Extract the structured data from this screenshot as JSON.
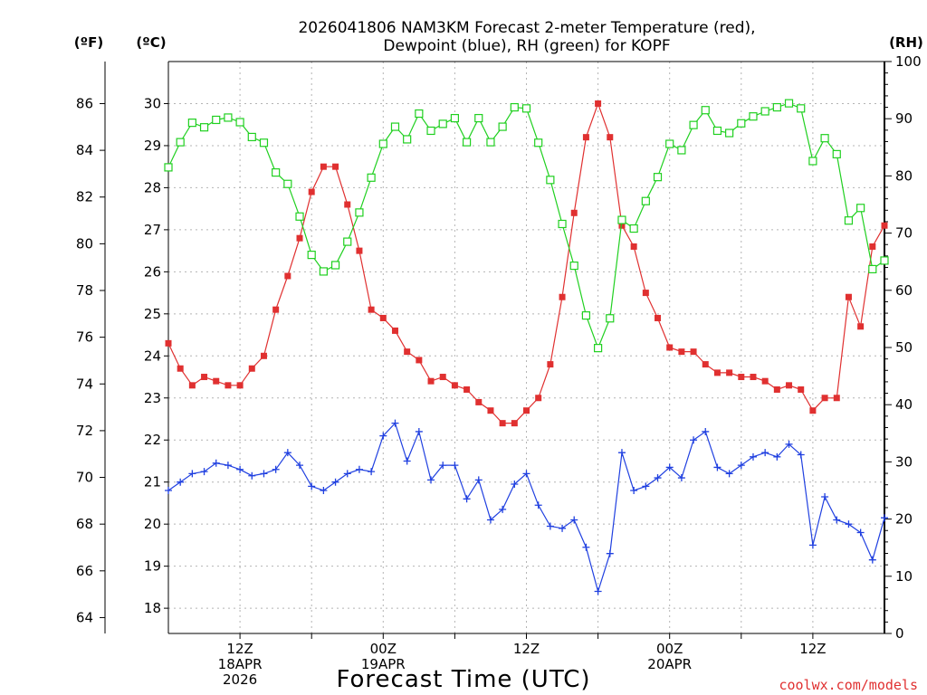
{
  "chart_data": {
    "type": "line",
    "title": [
      "2026041806 NAM3KM Forecast 2-meter Temperature (red),",
      "Dewpoint (blue), RH (green) for KOPF"
    ],
    "xlabel": "Forecast Time (UTC)",
    "credit": "coolwx.com/models",
    "units": {
      "fahrenheit": "(ºF)",
      "celsius": "(ºC)",
      "rh": "(RH)"
    },
    "x_range_hours": [
      6,
      66
    ],
    "x_ticks": [
      {
        "hour": 12,
        "lines": [
          "12Z",
          "18APR",
          "2026"
        ]
      },
      {
        "hour": 24,
        "lines": [
          "00Z",
          "19APR"
        ]
      },
      {
        "hour": 36,
        "lines": [
          "12Z"
        ]
      },
      {
        "hour": 48,
        "lines": [
          "00Z",
          "20APR"
        ]
      },
      {
        "hour": 60,
        "lines": [
          "12Z"
        ]
      }
    ],
    "celsius_ticks": [
      18,
      19,
      20,
      21,
      22,
      23,
      24,
      25,
      26,
      27,
      28,
      29,
      30
    ],
    "fahrenheit_ticks": [
      64,
      66,
      68,
      70,
      72,
      74,
      76,
      78,
      80,
      82,
      84,
      86
    ],
    "rh_ticks": [
      0,
      10,
      20,
      30,
      40,
      50,
      60,
      70,
      80,
      90,
      100
    ],
    "ylim_celsius": [
      17.4,
      31.0
    ],
    "ylim_rh": [
      0,
      100
    ],
    "series": [
      {
        "name": "Temperature (°C)",
        "color": "#e03030",
        "axis": "celsius",
        "marker": "filled-square",
        "x": [
          6,
          7,
          8,
          9,
          10,
          11,
          12,
          13,
          14,
          15,
          16,
          17,
          18,
          19,
          20,
          21,
          22,
          23,
          24,
          25,
          26,
          27,
          28,
          29,
          30,
          31,
          32,
          33,
          34,
          35,
          36,
          37,
          38,
          39,
          40,
          41,
          42,
          43,
          44,
          45,
          46,
          47,
          48,
          49,
          50,
          51,
          52,
          53,
          54,
          55,
          56,
          57,
          58,
          59,
          60,
          61,
          62,
          63,
          64,
          65,
          66
        ],
        "values": [
          24.3,
          23.7,
          23.3,
          23.5,
          23.4,
          23.3,
          23.3,
          23.7,
          24.0,
          25.1,
          25.9,
          26.8,
          27.9,
          28.5,
          28.5,
          27.6,
          26.5,
          25.1,
          24.9,
          24.6,
          24.1,
          23.9,
          23.4,
          23.5,
          23.3,
          23.2,
          22.9,
          22.7,
          22.4,
          22.4,
          22.7,
          23.0,
          23.8,
          25.4,
          27.4,
          29.2,
          30.0,
          29.2,
          27.1,
          26.6,
          25.5,
          24.9,
          24.2,
          24.1,
          24.1,
          23.8,
          23.6,
          23.6,
          23.5,
          23.5,
          23.4,
          23.2,
          23.3,
          23.2,
          22.7,
          23.0,
          23.0,
          25.4,
          24.7,
          26.6,
          27.1
        ]
      },
      {
        "name": "Dewpoint (°C)",
        "color": "#2040e0",
        "axis": "celsius",
        "marker": "plus",
        "x": [
          6,
          7,
          8,
          9,
          10,
          11,
          12,
          13,
          14,
          15,
          16,
          17,
          18,
          19,
          20,
          21,
          22,
          23,
          24,
          25,
          26,
          27,
          28,
          29,
          30,
          31,
          32,
          33,
          34,
          35,
          36,
          37,
          38,
          39,
          40,
          41,
          42,
          43,
          44,
          45,
          46,
          47,
          48,
          49,
          50,
          51,
          52,
          53,
          54,
          55,
          56,
          57,
          58,
          59,
          60,
          61,
          62,
          63,
          64,
          65,
          66
        ],
        "values": [
          20.8,
          21.0,
          21.2,
          21.25,
          21.45,
          21.4,
          21.3,
          21.15,
          21.2,
          21.3,
          21.7,
          21.4,
          20.9,
          20.8,
          21.0,
          21.2,
          21.3,
          21.25,
          22.1,
          22.4,
          21.5,
          22.2,
          21.05,
          21.4,
          21.4,
          20.6,
          21.05,
          20.1,
          20.35,
          20.95,
          21.2,
          20.45,
          19.95,
          19.9,
          20.1,
          19.45,
          18.4,
          19.3,
          21.7,
          20.8,
          20.9,
          21.1,
          21.35,
          21.1,
          22.0,
          22.2,
          21.35,
          21.2,
          21.4,
          21.6,
          21.7,
          21.6,
          21.9,
          21.65,
          19.5,
          20.65,
          20.1,
          20.0,
          19.8,
          19.15,
          20.15
        ]
      },
      {
        "name": "RH (%)",
        "color": "#20d020",
        "axis": "rh",
        "marker": "open-square",
        "x": [
          6,
          7,
          8,
          9,
          10,
          11,
          12,
          13,
          14,
          15,
          16,
          17,
          18,
          19,
          20,
          21,
          22,
          23,
          24,
          25,
          26,
          27,
          28,
          29,
          30,
          31,
          32,
          33,
          34,
          35,
          36,
          37,
          38,
          39,
          40,
          41,
          42,
          43,
          44,
          45,
          46,
          47,
          48,
          49,
          50,
          51,
          52,
          53,
          54,
          55,
          56,
          57,
          58,
          59,
          60,
          61,
          62,
          63,
          64,
          65,
          66
        ],
        "values": [
          81.5,
          85.9,
          89.3,
          88.5,
          89.8,
          90.2,
          89.4,
          86.8,
          85.8,
          80.6,
          78.6,
          72.9,
          66.2,
          63.3,
          64.4,
          68.5,
          73.6,
          79.7,
          85.6,
          88.6,
          86.4,
          90.9,
          87.9,
          89.1,
          90.1,
          85.9,
          90.1,
          85.9,
          88.6,
          92.0,
          91.8,
          85.8,
          79.3,
          71.6,
          64.3,
          55.6,
          49.9,
          55.1,
          72.3,
          70.8,
          75.6,
          79.8,
          85.6,
          84.5,
          88.9,
          91.5,
          87.9,
          87.5,
          89.2,
          90.4,
          91.3,
          92.0,
          92.7,
          91.8,
          82.6,
          86.6,
          83.8,
          72.2,
          74.4,
          63.7,
          65.2
        ]
      }
    ]
  }
}
